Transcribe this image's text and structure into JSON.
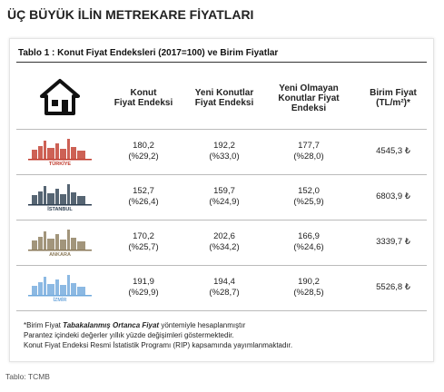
{
  "header": {
    "title": "ÜÇ BÜYÜK İLİN METREKARE FİYATLARI"
  },
  "table": {
    "caption": "Tablo 1 : Konut Fiyat Endeksleri (2017=100) ve Birim Fiyatlar",
    "columns": [
      [
        "Konut",
        "Fiyat Endeksi"
      ],
      [
        "Yeni Konutlar",
        "Fiyat Endeksi"
      ],
      [
        "Yeni Olmayan",
        "Konutlar Fiyat",
        "Endeksi"
      ],
      [
        "Birim Fiyat",
        "(TL/m²)*"
      ]
    ],
    "rows": [
      {
        "city": "TÜRKİYE",
        "cells": [
          [
            "180,2",
            "(%29,2)"
          ],
          [
            "192,2",
            "(%33,0)"
          ],
          [
            "177,7",
            "(%28,0)"
          ]
        ],
        "price": "4545,3 ₺"
      },
      {
        "city": "İSTANBUL",
        "cells": [
          [
            "152,7",
            "(%26,4)"
          ],
          [
            "159,7",
            "(%24,9)"
          ],
          [
            "152,0",
            "(%25,9)"
          ]
        ],
        "price": "6803,9 ₺"
      },
      {
        "city": "ANKARA",
        "cells": [
          [
            "170,2",
            "(%25,7)"
          ],
          [
            "202,6",
            "(%34,2)"
          ],
          [
            "166,9",
            "(%24,6)"
          ]
        ],
        "price": "3339,7 ₺"
      },
      {
        "city": "İZMİR",
        "cells": [
          [
            "191,9",
            "(%29,9)"
          ],
          [
            "194,4",
            "(%28,7)"
          ],
          [
            "190,2",
            "(%28,5)"
          ]
        ],
        "price": "5526,8 ₺"
      }
    ],
    "notes": {
      "line1": [
        "*Birim Fiyat ",
        "Tabakalanmış Ortanca Fiyat",
        " yöntemiyle hesaplanmıştır"
      ],
      "line2": "Parantez içindeki değerler yıllık yüzde değişimleri göstermektedir.",
      "line3": "Konut Fiyat Endeksi Resmi İstatistik Programı (RIP) kapsamında yayımlanmaktadır."
    }
  },
  "source": "Tablo: TCMB"
}
